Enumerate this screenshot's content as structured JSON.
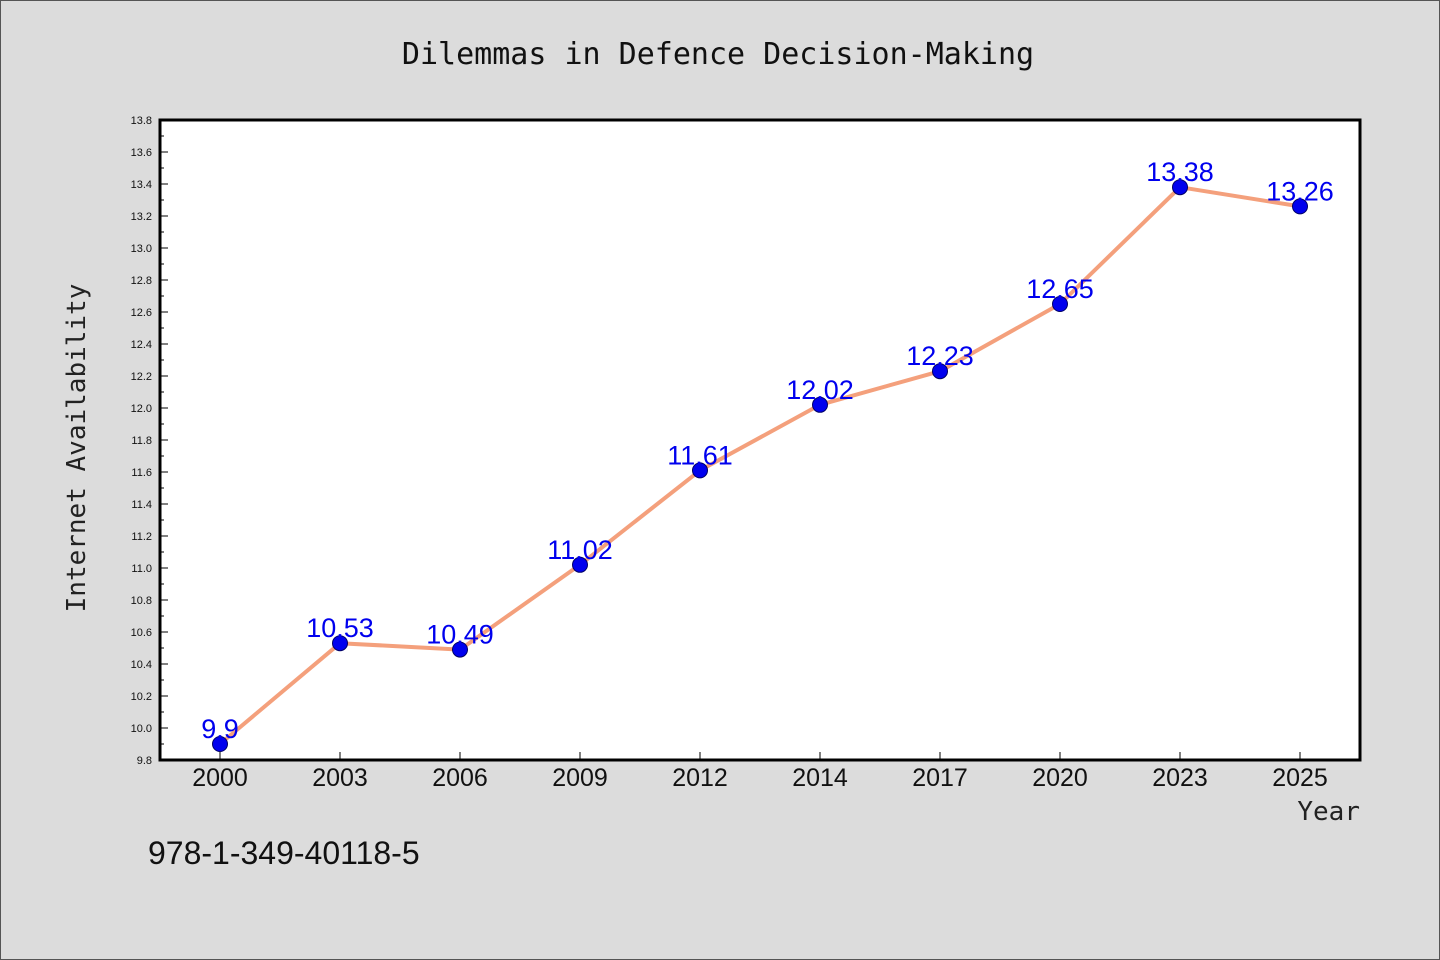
{
  "chart_data": {
    "type": "line",
    "title": "Dilemmas in Defence Decision-Making",
    "xlabel": "Year",
    "ylabel": "Internet Availability",
    "categories": [
      "2000",
      "2003",
      "2006",
      "2009",
      "2012",
      "2014",
      "2017",
      "2020",
      "2023",
      "2025"
    ],
    "series": [
      {
        "values": [
          9.9,
          10.53,
          10.49,
          11.02,
          11.61,
          12.02,
          12.23,
          12.65,
          13.38,
          13.26
        ],
        "labels": [
          "9.9",
          "10.53",
          "10.49",
          "11.02",
          "11.61",
          "12.02",
          "12.23",
          "12.65",
          "13.38",
          "13.26"
        ]
      }
    ],
    "ylim": [
      9.8,
      13.8
    ],
    "yticks": [
      "9.8",
      "10.0",
      "10.2",
      "10.4",
      "10.6",
      "10.8",
      "11.0",
      "11.2",
      "11.4",
      "11.6",
      "11.8",
      "12.0",
      "12.2",
      "12.4",
      "12.6",
      "12.8",
      "13.0",
      "13.2",
      "13.4",
      "13.6",
      "13.8"
    ],
    "grid": false,
    "legend": "none"
  },
  "footer": {
    "isbn": "978-1-349-40118-5"
  },
  "colors": {
    "background": "#dcdcdc",
    "plot_background": "#ffffff",
    "line": "#f4a07c",
    "marker_fill": "#0000ee",
    "marker_stroke": "#000066",
    "data_label": "#0000ee"
  }
}
